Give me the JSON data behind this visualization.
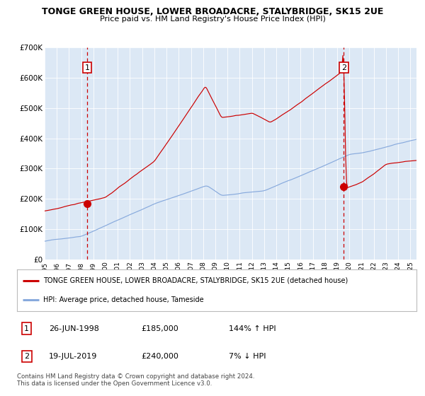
{
  "title": "TONGE GREEN HOUSE, LOWER BROADACRE, STALYBRIDGE, SK15 2UE",
  "subtitle": "Price paid vs. HM Land Registry's House Price Index (HPI)",
  "background_color": "#ffffff",
  "plot_bg_color": "#dce8f5",
  "red_line_color": "#cc0000",
  "blue_line_color": "#88aadd",
  "sale1_date": 1998.49,
  "sale1_price": 185000,
  "sale1_label": "1",
  "sale2_date": 2019.54,
  "sale2_price": 240000,
  "sale2_label": "2",
  "xmin": 1995.0,
  "xmax": 2025.5,
  "ymin": 0,
  "ymax": 700000,
  "yticks": [
    0,
    100000,
    200000,
    300000,
    400000,
    500000,
    600000,
    700000
  ],
  "ytick_labels": [
    "£0",
    "£100K",
    "£200K",
    "£300K",
    "£400K",
    "£500K",
    "£600K",
    "£700K"
  ],
  "legend_line1": "TONGE GREEN HOUSE, LOWER BROADACRE, STALYBRIDGE, SK15 2UE (detached house)",
  "legend_line2": "HPI: Average price, detached house, Tameside",
  "table_row1_num": "1",
  "table_row1_date": "26-JUN-1998",
  "table_row1_price": "£185,000",
  "table_row1_hpi": "144% ↑ HPI",
  "table_row2_num": "2",
  "table_row2_date": "19-JUL-2019",
  "table_row2_price": "£240,000",
  "table_row2_hpi": "7% ↓ HPI",
  "footer": "Contains HM Land Registry data © Crown copyright and database right 2024.\nThis data is licensed under the Open Government Licence v3.0."
}
